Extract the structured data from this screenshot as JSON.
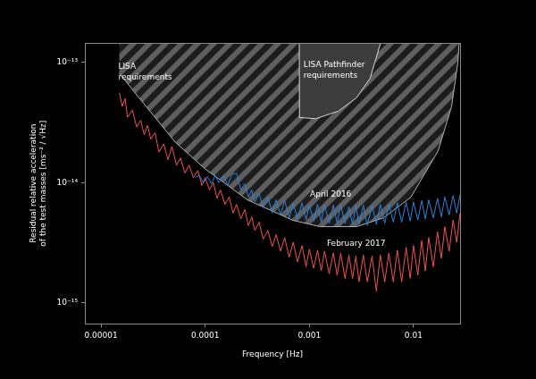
{
  "chart_data": {
    "type": "line",
    "x_label": "Frequency [Hz]",
    "y_label": [
      "Residual relative acceleration",
      "of the test masses [ms⁻² / √Hz]"
    ],
    "log": true,
    "grid": false,
    "xlim": [
      7e-06,
      0.028
    ],
    "ylim": [
      6.7e-16,
      1.45e-13
    ],
    "xticks": [
      1e-05,
      0.0001,
      0.001,
      0.01
    ],
    "yticks": [
      {
        "value": 1e-15,
        "label": "10⁻¹⁵"
      },
      {
        "value": 1e-14,
        "label": "10⁻¹⁴"
      },
      {
        "value": 1e-13,
        "label": "10⁻¹³"
      }
    ],
    "series": [
      {
        "name": "LISA requirements",
        "type": "hatch",
        "color": "#5e5e5e",
        "x": [
          1.49e-05,
          2.32e-05,
          5.16e-05,
          0.0001,
          0.000256,
          0.000697,
          0.00127,
          0.00283,
          0.00516,
          0.00942,
          0.0172,
          0.0232,
          0.0267,
          0.0275
        ],
        "values": [
          8.15e-14,
          5.07e-14,
          2.17e-14,
          1.3e-14,
          7.18e-15,
          4.86e-15,
          4.31e-15,
          4.31e-15,
          5.1e-15,
          7.55e-15,
          1.83e-14,
          4.28e-14,
          1e-13,
          1.5e-13
        ]
      },
      {
        "name": "LISA Pathfinder requirements",
        "type": "area",
        "color": "#3c3c3c",
        "x": [
          0.0008,
          0.000805,
          0.00115,
          0.0019,
          0.00283,
          0.00383,
          0.005
        ],
        "values": [
          1.6e-13,
          3.48e-14,
          3.4e-14,
          3.93e-14,
          5.07e-14,
          7.37e-14,
          1.6e-13
        ]
      },
      {
        "name": "April 2016",
        "type": "line",
        "color": "#2f82d8",
        "x": [
          8e-05,
          8.8e-05,
          9.6e-05,
          0.000105,
          0.000115,
          0.000125,
          0.000135,
          0.00015,
          0.000165,
          0.00018,
          0.0002,
          0.00022,
          0.00024,
          0.00026,
          0.00028,
          0.0003,
          0.00033,
          0.00036,
          0.0004,
          0.00044,
          0.00048,
          0.00053,
          0.00058,
          0.00064,
          0.0007,
          0.00077,
          0.00085,
          0.00093,
          0.001,
          0.0011,
          0.0012,
          0.0013,
          0.0014,
          0.00155,
          0.0017,
          0.00185,
          0.002,
          0.0022,
          0.0024,
          0.0026,
          0.0028,
          0.003,
          0.0033,
          0.0036,
          0.004,
          0.0044,
          0.0048,
          0.0053,
          0.0058,
          0.0064,
          0.007,
          0.0077,
          0.0085,
          0.0093,
          0.01,
          0.011,
          0.012,
          0.013,
          0.014,
          0.0155,
          0.017,
          0.0185,
          0.02,
          0.022,
          0.024,
          0.026,
          0.028
        ],
        "values": [
          1.1e-14,
          1.15e-14,
          1e-14,
          1.12e-14,
          9.8e-15,
          1.15e-14,
          1e-14,
          1.15e-14,
          9.5e-15,
          1.17e-14,
          1.2e-14,
          8.7e-15,
          9.8e-15,
          7.6e-15,
          8.7e-15,
          6.9e-15,
          8.1e-15,
          6.2e-15,
          7.6e-15,
          5.6e-15,
          7.2e-15,
          5.4e-15,
          7.1e-15,
          5.1e-15,
          6.8e-15,
          5e-15,
          6.8e-15,
          4.9e-15,
          6.5e-15,
          4.8e-15,
          6.6e-15,
          4.7e-15,
          6.5e-15,
          4.6e-15,
          6.5e-15,
          4.6e-15,
          6.5e-15,
          4.6e-15,
          6.3e-15,
          4.5e-15,
          6.5e-15,
          4.5e-15,
          6.5e-15,
          4.4e-15,
          6.5e-15,
          4.5e-15,
          6.6e-15,
          4.6e-15,
          6.6e-15,
          4.7e-15,
          6.8e-15,
          4.7e-15,
          6.9e-15,
          4.8e-15,
          6.9e-15,
          4.9e-15,
          7.1e-15,
          5e-15,
          7.2e-15,
          5.1e-15,
          7.4e-15,
          5.2e-15,
          7.6e-15,
          5.4e-15,
          7.8e-15,
          5.6e-15,
          7.9e-15
        ]
      },
      {
        "name": "February 2017",
        "type": "line",
        "color": "#f2524f",
        "x": [
          1.5e-05,
          1.6e-05,
          1.7e-05,
          1.8e-05,
          2e-05,
          2.2e-05,
          2.4e-05,
          2.6e-05,
          2.8e-05,
          3e-05,
          3.3e-05,
          3.6e-05,
          4e-05,
          4.4e-05,
          4.8e-05,
          5.3e-05,
          5.8e-05,
          6.4e-05,
          7e-05,
          7.7e-05,
          8.5e-05,
          9.3e-05,
          0.0001,
          0.00011,
          0.00012,
          0.00013,
          0.00014,
          0.000155,
          0.00017,
          0.000185,
          0.0002,
          0.00022,
          0.00024,
          0.00026,
          0.00028,
          0.0003,
          0.00033,
          0.00036,
          0.0004,
          0.00044,
          0.00048,
          0.00053,
          0.00058,
          0.00064,
          0.0007,
          0.00077,
          0.00085,
          0.00093,
          0.001,
          0.0011,
          0.0012,
          0.0013,
          0.0014,
          0.00155,
          0.0017,
          0.00185,
          0.002,
          0.0022,
          0.0024,
          0.0026,
          0.0028,
          0.003,
          0.0033,
          0.0036,
          0.004,
          0.0044,
          0.0048,
          0.0053,
          0.0058,
          0.0064,
          0.007,
          0.0077,
          0.0085,
          0.0093,
          0.01,
          0.011,
          0.012,
          0.013,
          0.014,
          0.0155,
          0.017,
          0.0185,
          0.02,
          0.022,
          0.024,
          0.026,
          0.028
        ],
        "values": [
          5.6e-14,
          4.3e-14,
          5e-14,
          3.5e-14,
          4e-14,
          2.9e-14,
          3.3e-14,
          2.5e-14,
          3e-14,
          2.3e-14,
          2.6e-14,
          1.8e-14,
          2.1e-14,
          1.55e-14,
          2e-14,
          1.4e-14,
          1.6e-14,
          1.2e-14,
          1.4e-14,
          1.1e-14,
          1.26e-14,
          9.5e-15,
          1.1e-14,
          8.7e-15,
          1e-14,
          7.4e-15,
          8.7e-15,
          6.6e-15,
          7.6e-15,
          5.6e-15,
          6.6e-15,
          5e-15,
          6e-15,
          4.4e-15,
          5.2e-15,
          4e-15,
          4.7e-15,
          3.4e-15,
          4e-15,
          2.95e-15,
          3.7e-15,
          2.7e-15,
          3.5e-15,
          2.4e-15,
          3.2e-15,
          2.2e-15,
          3e-15,
          2e-15,
          2.8e-15,
          1.95e-15,
          2.75e-15,
          1.85e-15,
          2.7e-15,
          1.75e-15,
          2.6e-15,
          1.7e-15,
          2.6e-15,
          1.6e-15,
          2.5e-15,
          1.6e-15,
          2.45e-15,
          1.5e-15,
          2.5e-15,
          1.5e-15,
          2.45e-15,
          1.26e-15,
          2.5e-15,
          1.5e-15,
          2.6e-15,
          1.5e-15,
          2.75e-15,
          1.5e-15,
          2.9e-15,
          1.6e-15,
          3e-15,
          1.7e-15,
          3.3e-15,
          1.85e-15,
          3.5e-15,
          2e-15,
          3.9e-15,
          2.35e-15,
          4.3e-15,
          2.7e-15,
          4.9e-15,
          3.2e-15,
          5.6e-15
        ]
      }
    ]
  }
}
